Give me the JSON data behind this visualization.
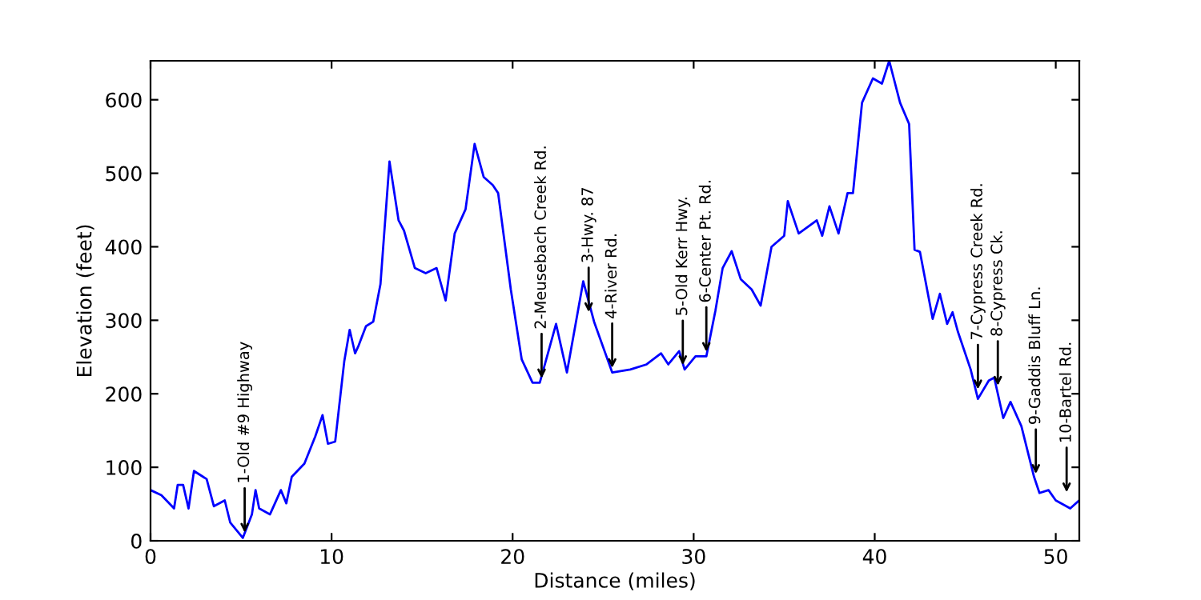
{
  "chart_data": {
    "type": "line",
    "xlabel": "Distance (miles)",
    "ylabel": "Elevation (feet)",
    "x": [
      0,
      0.6,
      1.3,
      1.5,
      1.8,
      2.1,
      2.4,
      3.1,
      3.5,
      4.1,
      4.4,
      5.1,
      5.6,
      5.8,
      6.0,
      6.6,
      7.2,
      7.5,
      7.8,
      8.5,
      9.1,
      9.5,
      9.8,
      10.2,
      10.7,
      11.0,
      11.3,
      11.5,
      11.9,
      12.3,
      12.7,
      13.2,
      13.7,
      14.0,
      14.6,
      15.2,
      15.8,
      16.3,
      16.8,
      17.4,
      17.9,
      18.4,
      18.9,
      19.2,
      19.9,
      20.5,
      21.1,
      21.5,
      22.4,
      23.0,
      23.9,
      24.5,
      25.5,
      26.5,
      27.4,
      28.2,
      28.6,
      29.2,
      29.5,
      30.1,
      30.7,
      31.2,
      31.6,
      32.1,
      32.6,
      33.2,
      33.7,
      34.3,
      35.0,
      35.2,
      35.8,
      36.8,
      37.1,
      37.5,
      38.0,
      38.5,
      38.8,
      39.3,
      39.9,
      40.4,
      40.8,
      41.4,
      41.9,
      42.2,
      42.5,
      43.2,
      43.6,
      44.0,
      44.3,
      44.6,
      45.3,
      45.7,
      46.3,
      46.6,
      47.1,
      47.5,
      48.1,
      48.8,
      49.1,
      49.6,
      50.0,
      50.8,
      51.3
    ],
    "series": [
      {
        "color": "#0000ff",
        "values": [
          69,
          62,
          44,
          76,
          76,
          44,
          95,
          84,
          47,
          55,
          25,
          4,
          36,
          69,
          44,
          36,
          69,
          51,
          87,
          105,
          142,
          171,
          132,
          135,
          244,
          287,
          255,
          266,
          292,
          298,
          349,
          516,
          436,
          422,
          371,
          364,
          371,
          327,
          418,
          451,
          540,
          495,
          484,
          473,
          342,
          247,
          215,
          215,
          295,
          229,
          353,
          298,
          229,
          233,
          240,
          255,
          240,
          258,
          233,
          251,
          251,
          313,
          371,
          394,
          356,
          342,
          320,
          400,
          415,
          462,
          418,
          436,
          415,
          455,
          418,
          473,
          473,
          596,
          629,
          622,
          653,
          596,
          567,
          396,
          393,
          302,
          336,
          295,
          311,
          284,
          233,
          193,
          218,
          222,
          167,
          189,
          156,
          87,
          65,
          69,
          55,
          44,
          55
        ]
      }
    ],
    "xlim": [
      0,
      51.3
    ],
    "ylim": [
      0,
      653
    ],
    "xticks": [
      0,
      10,
      20,
      30,
      40,
      50
    ],
    "yticks": [
      0,
      100,
      200,
      300,
      400,
      500,
      600
    ],
    "grid": false,
    "marker": "none",
    "line_style": "solid",
    "annotations": [
      {
        "text": "1-Old #9 Highway",
        "x": 5.2,
        "y": 5
      },
      {
        "text": "2-Meusebach Creek Rd.",
        "x": 21.6,
        "y": 215
      },
      {
        "text": "3-Hwy. 87",
        "x": 24.2,
        "y": 305
      },
      {
        "text": "4-River Rd.",
        "x": 25.5,
        "y": 229
      },
      {
        "text": "5-Old Kerr Hwy.",
        "x": 29.4,
        "y": 233
      },
      {
        "text": "6-Center Pt. Rd.",
        "x": 30.7,
        "y": 251
      },
      {
        "text": "7-Cypress Creek Rd.",
        "x": 45.7,
        "y": 200
      },
      {
        "text": "8-Cypress Ck.",
        "x": 46.8,
        "y": 205
      },
      {
        "text": "9-Gaddis Bluff Ln.",
        "x": 48.9,
        "y": 85
      },
      {
        "text": "10-Bartel Rd.",
        "x": 50.6,
        "y": 60
      }
    ]
  }
}
